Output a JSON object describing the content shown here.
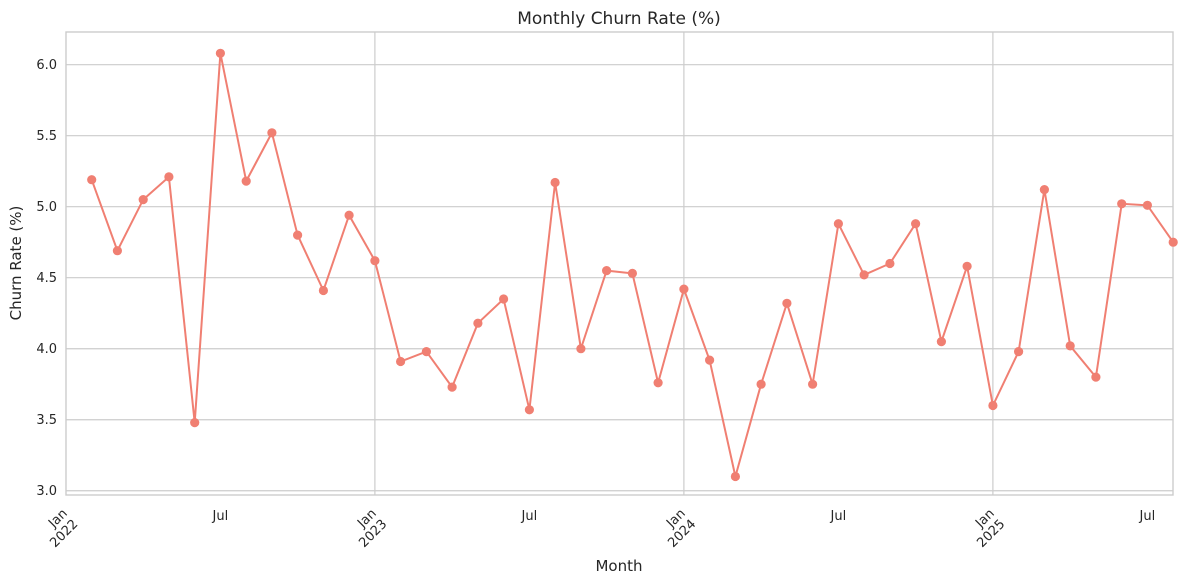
{
  "chart_data": {
    "type": "line",
    "title": "Monthly Churn Rate (%)",
    "xlabel": "Month",
    "ylabel": "Churn Rate (%)",
    "ylim": [
      2.97,
      6.23
    ],
    "yticks": [
      "3.0",
      "3.5",
      "4.0",
      "4.5",
      "5.0",
      "5.5",
      "6.0"
    ],
    "xticks": [
      {
        "date": "2022-01",
        "label": "Jan\n2022"
      },
      {
        "date": "2022-07",
        "label": "Jul"
      },
      {
        "date": "2023-01",
        "label": "Jan\n2023"
      },
      {
        "date": "2023-07",
        "label": "Jul"
      },
      {
        "date": "2024-01",
        "label": "Jan\n2024"
      },
      {
        "date": "2024-07",
        "label": "Jul"
      },
      {
        "date": "2025-01",
        "label": "Jan\n2025"
      },
      {
        "date": "2025-07",
        "label": "Jul"
      }
    ],
    "grid": true,
    "color": "#f07f72",
    "x": [
      "2022-02",
      "2022-03",
      "2022-04",
      "2022-05",
      "2022-06",
      "2022-07",
      "2022-08",
      "2022-09",
      "2022-10",
      "2022-11",
      "2022-12",
      "2023-01",
      "2023-02",
      "2023-03",
      "2023-04",
      "2023-05",
      "2023-06",
      "2023-07",
      "2023-08",
      "2023-09",
      "2023-10",
      "2023-11",
      "2023-12",
      "2024-01",
      "2024-02",
      "2024-03",
      "2024-04",
      "2024-05",
      "2024-06",
      "2024-07",
      "2024-08",
      "2024-09",
      "2024-10",
      "2024-11",
      "2024-12",
      "2025-01",
      "2025-02",
      "2025-03",
      "2025-04",
      "2025-05",
      "2025-06",
      "2025-07",
      "2025-08"
    ],
    "series": [
      {
        "values": [
          5.19,
          4.69,
          5.05,
          5.21,
          3.48,
          6.08,
          5.18,
          5.52,
          4.8,
          4.41,
          4.94,
          4.62,
          3.91,
          3.98,
          3.73,
          4.18,
          4.35,
          3.57,
          5.17,
          4.0,
          4.55,
          4.53,
          3.76,
          4.42,
          3.92,
          3.1,
          3.75,
          4.32,
          3.75,
          4.88,
          4.52,
          4.6,
          4.88,
          4.05,
          4.58,
          3.6,
          3.98,
          5.12,
          4.02,
          3.8,
          5.02,
          5.01,
          4.75
        ]
      }
    ]
  }
}
